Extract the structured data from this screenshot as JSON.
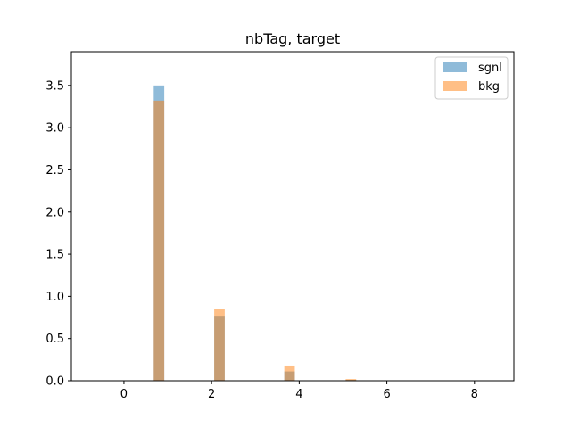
{
  "chart_data": {
    "type": "bar",
    "title": "nbTag, target",
    "xlabel": "",
    "ylabel": "",
    "xlim": [
      -1.2,
      8.9
    ],
    "ylim": [
      0,
      3.9
    ],
    "xticks": [
      0,
      2,
      4,
      6,
      8
    ],
    "yticks": [
      0.0,
      0.5,
      1.0,
      1.5,
      2.0,
      2.5,
      3.0,
      3.5
    ],
    "xtick_labels": [
      "0",
      "2",
      "4",
      "6",
      "8"
    ],
    "ytick_labels": [
      "0.0",
      "0.5",
      "1.0",
      "1.5",
      "2.0",
      "2.5",
      "3.0",
      "3.5"
    ],
    "grid": false,
    "legend_position": "top-right",
    "bin_width": 0.24,
    "series": [
      {
        "name": "sgnl",
        "color": "#1f77b4",
        "alpha": 0.5,
        "bins": [
          {
            "x0": 0.68,
            "value": 3.5
          },
          {
            "x0": 2.06,
            "value": 0.77
          },
          {
            "x0": 3.66,
            "value": 0.11
          },
          {
            "x0": 5.06,
            "value": 0.01
          }
        ]
      },
      {
        "name": "bkg",
        "color": "#ff7f0e",
        "alpha": 0.5,
        "bins": [
          {
            "x0": 0.68,
            "value": 3.32
          },
          {
            "x0": 2.06,
            "value": 0.85
          },
          {
            "x0": 3.66,
            "value": 0.18
          },
          {
            "x0": 5.06,
            "value": 0.02
          }
        ]
      }
    ]
  }
}
